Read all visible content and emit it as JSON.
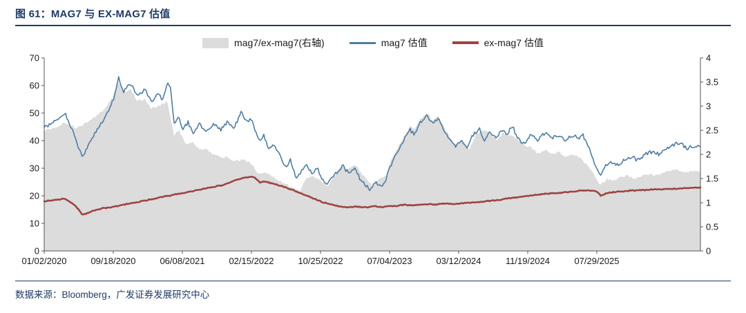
{
  "header": {
    "title": "图 61：MAG7 与 EX-MAG7 估值"
  },
  "footer": {
    "source": "数据来源：Bloomberg，广发证券发展研究中心"
  },
  "colors": {
    "title_navy": "#1e3a66",
    "mag7_line": "#4e7ca1",
    "ex_mag7_line": "#9e4343",
    "ratio_fill": "#dcdcdc",
    "axis": "#555555"
  },
  "legend": {
    "items": [
      {
        "label": "mag7/ex-mag7(右轴)",
        "swatch": "area",
        "color": "#dcdcdc"
      },
      {
        "label": "mag7 估值",
        "swatch": "line",
        "color": "#4e7ca1"
      },
      {
        "label": "ex-mag7 估值",
        "swatch": "line-thick",
        "color": "#9e4343"
      }
    ]
  },
  "chart_data": {
    "type": "line",
    "title": "MAG7 与 EX-MAG7 估值",
    "legend_position": "top",
    "grid": false,
    "x_units_total": 9.5,
    "x_ticks": [
      "01/02/2020",
      "09/18/2020",
      "06/08/2021",
      "02/15/2022",
      "10/25/2022",
      "07/04/2023",
      "03/12/2024",
      "11/19/2024",
      "07/29/2025"
    ],
    "left_axis": {
      "min": 0,
      "max": 70,
      "ticks": [
        0,
        10,
        20,
        30,
        40,
        50,
        60,
        70
      ]
    },
    "right_axis": {
      "min": 0,
      "max": 4,
      "ticks": [
        "0",
        "0.5",
        "1",
        "1.5",
        "2",
        "2.5",
        "3",
        "3.5",
        "4"
      ]
    },
    "series": [
      {
        "name": "mag7/ex-mag7(右轴)",
        "type": "area",
        "axis": "right",
        "color": "#dcdcdc",
        "jitter": 0.045,
        "keypoints": [
          [
            0,
            2.5
          ],
          [
            0.15,
            2.55
          ],
          [
            0.3,
            2.65
          ],
          [
            0.45,
            2.55
          ],
          [
            0.55,
            2.6
          ],
          [
            0.7,
            2.75
          ],
          [
            0.85,
            2.9
          ],
          [
            1.0,
            3.2
          ],
          [
            1.08,
            3.5
          ],
          [
            1.15,
            3.3
          ],
          [
            1.25,
            3.35
          ],
          [
            1.35,
            3.1
          ],
          [
            1.45,
            3.15
          ],
          [
            1.55,
            2.95
          ],
          [
            1.65,
            3.0
          ],
          [
            1.78,
            3.1
          ],
          [
            1.88,
            2.4
          ],
          [
            1.95,
            2.5
          ],
          [
            2.05,
            2.2
          ],
          [
            2.15,
            2.25
          ],
          [
            2.25,
            2.1
          ],
          [
            2.35,
            2.1
          ],
          [
            2.45,
            2.0
          ],
          [
            2.55,
            1.95
          ],
          [
            2.65,
            1.95
          ],
          [
            2.75,
            1.85
          ],
          [
            2.85,
            1.9
          ],
          [
            2.95,
            1.85
          ],
          [
            3.0,
            1.8
          ],
          [
            3.1,
            1.6
          ],
          [
            3.2,
            1.65
          ],
          [
            3.3,
            1.55
          ],
          [
            3.4,
            1.45
          ],
          [
            3.5,
            1.4
          ],
          [
            3.6,
            1.3
          ],
          [
            3.7,
            1.25
          ],
          [
            3.8,
            1.5
          ],
          [
            3.9,
            1.55
          ],
          [
            4.0,
            1.45
          ],
          [
            4.1,
            1.35
          ],
          [
            4.2,
            1.55
          ],
          [
            4.3,
            1.75
          ],
          [
            4.4,
            1.7
          ],
          [
            4.5,
            1.8
          ],
          [
            4.6,
            1.6
          ],
          [
            4.65,
            1.5
          ],
          [
            4.75,
            1.35
          ],
          [
            4.85,
            1.5
          ],
          [
            4.95,
            1.55
          ],
          [
            5.0,
            1.8
          ],
          [
            5.1,
            2.1
          ],
          [
            5.2,
            2.35
          ],
          [
            5.3,
            2.6
          ],
          [
            5.36,
            2.5
          ],
          [
            5.45,
            2.75
          ],
          [
            5.55,
            2.85
          ],
          [
            5.62,
            2.7
          ],
          [
            5.7,
            2.8
          ],
          [
            5.78,
            2.6
          ],
          [
            5.85,
            2.4
          ],
          [
            5.95,
            2.2
          ],
          [
            6.05,
            2.3
          ],
          [
            6.15,
            2.1
          ],
          [
            6.25,
            2.4
          ],
          [
            6.35,
            2.5
          ],
          [
            6.45,
            2.45
          ],
          [
            6.55,
            2.3
          ],
          [
            6.65,
            2.45
          ],
          [
            6.75,
            2.4
          ],
          [
            6.85,
            2.3
          ],
          [
            6.95,
            2.2
          ],
          [
            7.05,
            2.15
          ],
          [
            7.15,
            2.0
          ],
          [
            7.25,
            2.1
          ],
          [
            7.35,
            2.0
          ],
          [
            7.45,
            2.05
          ],
          [
            7.55,
            1.95
          ],
          [
            7.65,
            2.0
          ],
          [
            7.75,
            1.95
          ],
          [
            7.85,
            1.8
          ],
          [
            7.95,
            1.6
          ],
          [
            8.05,
            1.35
          ],
          [
            8.15,
            1.5
          ],
          [
            8.25,
            1.45
          ],
          [
            8.35,
            1.55
          ],
          [
            8.45,
            1.55
          ],
          [
            8.55,
            1.5
          ],
          [
            8.65,
            1.55
          ],
          [
            8.75,
            1.6
          ],
          [
            8.85,
            1.55
          ],
          [
            8.95,
            1.62
          ],
          [
            9.05,
            1.65
          ],
          [
            9.15,
            1.7
          ],
          [
            9.25,
            1.62
          ],
          [
            9.35,
            1.65
          ],
          [
            9.5,
            1.65
          ]
        ]
      },
      {
        "name": "ex-mag7 估值",
        "type": "line",
        "axis": "left",
        "color": "#9e4343",
        "width": 2.6,
        "jitter": 0.28,
        "keypoints": [
          [
            0,
            18
          ],
          [
            0.15,
            18.5
          ],
          [
            0.3,
            19
          ],
          [
            0.45,
            16.5
          ],
          [
            0.55,
            13
          ],
          [
            0.7,
            14.5
          ],
          [
            0.85,
            15.5
          ],
          [
            1.0,
            16
          ],
          [
            1.2,
            17
          ],
          [
            1.4,
            18
          ],
          [
            1.6,
            19
          ],
          [
            1.8,
            20
          ],
          [
            2.0,
            21
          ],
          [
            2.2,
            22
          ],
          [
            2.4,
            23
          ],
          [
            2.6,
            24
          ],
          [
            2.7,
            25
          ],
          [
            2.8,
            26
          ],
          [
            2.9,
            26.5
          ],
          [
            3.0,
            27
          ],
          [
            3.06,
            26.5
          ],
          [
            3.12,
            24.8
          ],
          [
            3.2,
            25.2
          ],
          [
            3.3,
            24.5
          ],
          [
            3.4,
            23.8
          ],
          [
            3.5,
            23
          ],
          [
            3.6,
            22
          ],
          [
            3.7,
            21
          ],
          [
            3.8,
            20
          ],
          [
            3.9,
            19
          ],
          [
            4.0,
            18
          ],
          [
            4.1,
            17.2
          ],
          [
            4.2,
            16.6
          ],
          [
            4.3,
            16
          ],
          [
            4.4,
            15.8
          ],
          [
            4.5,
            16.2
          ],
          [
            4.6,
            15.8
          ],
          [
            4.7,
            16
          ],
          [
            4.8,
            16.2
          ],
          [
            4.9,
            15.8
          ],
          [
            5.0,
            16.4
          ],
          [
            5.1,
            16.2
          ],
          [
            5.2,
            16.8
          ],
          [
            5.35,
            16.5
          ],
          [
            5.5,
            17
          ],
          [
            5.65,
            16.8
          ],
          [
            5.8,
            17.2
          ],
          [
            5.95,
            17
          ],
          [
            6.1,
            17.4
          ],
          [
            6.25,
            17.6
          ],
          [
            6.4,
            18
          ],
          [
            6.55,
            18.4
          ],
          [
            6.7,
            19
          ],
          [
            6.85,
            19.4
          ],
          [
            7.0,
            20
          ],
          [
            7.15,
            20.4
          ],
          [
            7.3,
            20.8
          ],
          [
            7.45,
            21
          ],
          [
            7.6,
            21.4
          ],
          [
            7.75,
            21.8
          ],
          [
            7.9,
            22
          ],
          [
            8.0,
            21.5
          ],
          [
            8.06,
            20
          ],
          [
            8.15,
            21
          ],
          [
            8.3,
            21.5
          ],
          [
            8.45,
            21.8
          ],
          [
            8.6,
            22
          ],
          [
            8.75,
            22.2
          ],
          [
            8.9,
            22.4
          ],
          [
            9.05,
            22.5
          ],
          [
            9.2,
            22.6
          ],
          [
            9.35,
            22.8
          ],
          [
            9.5,
            23
          ]
        ]
      },
      {
        "name": "mag7 估值",
        "type": "line",
        "axis": "left",
        "color": "#4e7ca1",
        "width": 1.6,
        "jitter": 1.2,
        "keypoints": [
          [
            0,
            45
          ],
          [
            0.15,
            47
          ],
          [
            0.3,
            50
          ],
          [
            0.42,
            43
          ],
          [
            0.55,
            34
          ],
          [
            0.7,
            41
          ],
          [
            0.8,
            45
          ],
          [
            0.9,
            49
          ],
          [
            1.0,
            55
          ],
          [
            1.08,
            63
          ],
          [
            1.15,
            58
          ],
          [
            1.25,
            61
          ],
          [
            1.35,
            56
          ],
          [
            1.45,
            59
          ],
          [
            1.55,
            54
          ],
          [
            1.65,
            57
          ],
          [
            1.72,
            55
          ],
          [
            1.78,
            61
          ],
          [
            1.83,
            59
          ],
          [
            1.88,
            46
          ],
          [
            1.95,
            49
          ],
          [
            2.0,
            44
          ],
          [
            2.08,
            47
          ],
          [
            2.15,
            43
          ],
          [
            2.25,
            46
          ],
          [
            2.35,
            43
          ],
          [
            2.45,
            46
          ],
          [
            2.55,
            44
          ],
          [
            2.65,
            47
          ],
          [
            2.75,
            45
          ],
          [
            2.85,
            50
          ],
          [
            2.92,
            47
          ],
          [
            3.0,
            48
          ],
          [
            3.06,
            43
          ],
          [
            3.12,
            40
          ],
          [
            3.18,
            42
          ],
          [
            3.25,
            37
          ],
          [
            3.32,
            39
          ],
          [
            3.42,
            34
          ],
          [
            3.5,
            30
          ],
          [
            3.57,
            33
          ],
          [
            3.65,
            26
          ],
          [
            3.72,
            29
          ],
          [
            3.8,
            31
          ],
          [
            3.88,
            28
          ],
          [
            3.95,
            30
          ],
          [
            4.0,
            27
          ],
          [
            4.08,
            24
          ],
          [
            4.15,
            26
          ],
          [
            4.25,
            29
          ],
          [
            4.32,
            31
          ],
          [
            4.42,
            28
          ],
          [
            4.5,
            30
          ],
          [
            4.58,
            26
          ],
          [
            4.65,
            24
          ],
          [
            4.72,
            22
          ],
          [
            4.8,
            25
          ],
          [
            4.88,
            23
          ],
          [
            4.95,
            26
          ],
          [
            5.0,
            30
          ],
          [
            5.1,
            35
          ],
          [
            5.2,
            40
          ],
          [
            5.3,
            44
          ],
          [
            5.36,
            42
          ],
          [
            5.45,
            47
          ],
          [
            5.55,
            49
          ],
          [
            5.62,
            46
          ],
          [
            5.7,
            48
          ],
          [
            5.78,
            44
          ],
          [
            5.85,
            41
          ],
          [
            5.95,
            38
          ],
          [
            6.05,
            40
          ],
          [
            6.12,
            37
          ],
          [
            6.2,
            42
          ],
          [
            6.3,
            44
          ],
          [
            6.36,
            40
          ],
          [
            6.45,
            43
          ],
          [
            6.55,
            41
          ],
          [
            6.62,
            44
          ],
          [
            6.7,
            42
          ],
          [
            6.78,
            45
          ],
          [
            6.85,
            41
          ],
          [
            6.95,
            39
          ],
          [
            7.05,
            42
          ],
          [
            7.15,
            40
          ],
          [
            7.25,
            43
          ],
          [
            7.35,
            41
          ],
          [
            7.45,
            42
          ],
          [
            7.55,
            40
          ],
          [
            7.65,
            42
          ],
          [
            7.72,
            41
          ],
          [
            7.8,
            42
          ],
          [
            7.88,
            38
          ],
          [
            7.95,
            33
          ],
          [
            8.05,
            27
          ],
          [
            8.12,
            31
          ],
          [
            8.2,
            32
          ],
          [
            8.3,
            31
          ],
          [
            8.4,
            33
          ],
          [
            8.5,
            34
          ],
          [
            8.6,
            33
          ],
          [
            8.7,
            35
          ],
          [
            8.8,
            36
          ],
          [
            8.9,
            35
          ],
          [
            9.0,
            37
          ],
          [
            9.1,
            38
          ],
          [
            9.2,
            39
          ],
          [
            9.3,
            37
          ],
          [
            9.4,
            38
          ],
          [
            9.5,
            38
          ]
        ]
      }
    ]
  }
}
